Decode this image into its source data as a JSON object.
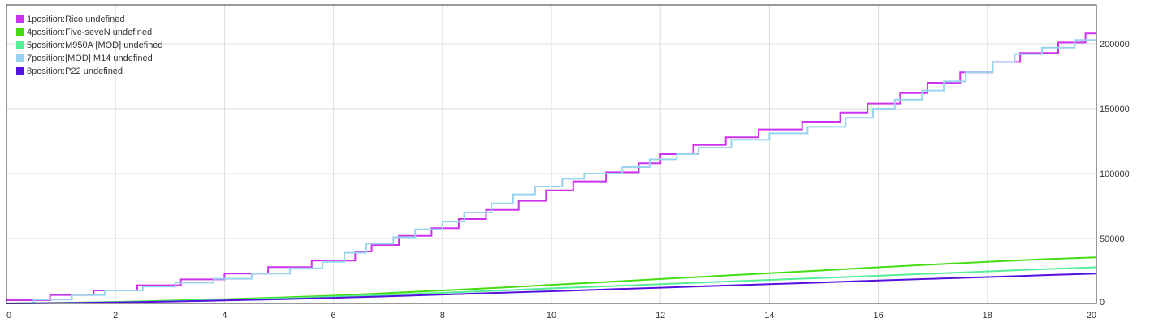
{
  "chart_data": {
    "type": "line",
    "step": true,
    "title": "",
    "xlabel": "",
    "ylabel": "",
    "xlim": [
      0,
      20
    ],
    "ylim": [
      0,
      230000
    ],
    "x_ticks": [
      0,
      2,
      4,
      6,
      8,
      10,
      12,
      14,
      16,
      18,
      20
    ],
    "x_tick_labels": [
      "0",
      "2",
      "4",
      "6",
      "8",
      "10",
      "12",
      "14",
      "16",
      "18",
      "20"
    ],
    "y_ticks": [
      0,
      50000,
      100000,
      150000,
      200000
    ],
    "y_tick_labels": [
      "0",
      "50000",
      "100000",
      "150000",
      "200000"
    ],
    "y_axis_side": "right",
    "grid": true,
    "legend_position": "top-left",
    "series": [
      {
        "name": "1position:Rico undefined",
        "color": "#cc33ee",
        "points": [
          [
            0,
            2500
          ],
          [
            0.8,
            2500
          ],
          [
            0.8,
            6500
          ],
          [
            1.6,
            6500
          ],
          [
            1.6,
            10000
          ],
          [
            2.4,
            10000
          ],
          [
            2.4,
            14000
          ],
          [
            3.2,
            14000
          ],
          [
            3.2,
            18500
          ],
          [
            4.0,
            18500
          ],
          [
            4.0,
            23000
          ],
          [
            4.8,
            23000
          ],
          [
            4.8,
            28000
          ],
          [
            5.6,
            28000
          ],
          [
            5.6,
            33000
          ],
          [
            6.4,
            33000
          ],
          [
            6.4,
            40000
          ],
          [
            6.7,
            40000
          ],
          [
            6.7,
            45000
          ],
          [
            7.2,
            45000
          ],
          [
            7.2,
            52000
          ],
          [
            7.8,
            52000
          ],
          [
            7.8,
            58000
          ],
          [
            8.3,
            58000
          ],
          [
            8.3,
            65000
          ],
          [
            8.8,
            65000
          ],
          [
            8.8,
            72000
          ],
          [
            9.4,
            72000
          ],
          [
            9.4,
            79000
          ],
          [
            9.9,
            79000
          ],
          [
            9.9,
            87000
          ],
          [
            10.4,
            87000
          ],
          [
            10.4,
            94000
          ],
          [
            11.0,
            94000
          ],
          [
            11.0,
            101000
          ],
          [
            11.6,
            101000
          ],
          [
            11.6,
            108000
          ],
          [
            12.0,
            108000
          ],
          [
            12.0,
            115000
          ],
          [
            12.6,
            115000
          ],
          [
            12.6,
            122000
          ],
          [
            13.2,
            122000
          ],
          [
            13.2,
            128000
          ],
          [
            13.8,
            128000
          ],
          [
            13.8,
            134000
          ],
          [
            14.6,
            134000
          ],
          [
            14.6,
            140000
          ],
          [
            15.3,
            140000
          ],
          [
            15.3,
            147000
          ],
          [
            15.8,
            147000
          ],
          [
            15.8,
            154000
          ],
          [
            16.4,
            154000
          ],
          [
            16.4,
            162000
          ],
          [
            16.9,
            162000
          ],
          [
            16.9,
            170000
          ],
          [
            17.5,
            170000
          ],
          [
            17.5,
            178000
          ],
          [
            18.1,
            178000
          ],
          [
            18.1,
            186000
          ],
          [
            18.6,
            186000
          ],
          [
            18.6,
            193000
          ],
          [
            19.3,
            193000
          ],
          [
            19.3,
            201000
          ],
          [
            19.8,
            201000
          ],
          [
            19.8,
            208000
          ],
          [
            20.0,
            208000
          ]
        ]
      },
      {
        "name": "4position:Five-seveN undefined",
        "color": "#44dd11",
        "points": [
          [
            0,
            0
          ],
          [
            1,
            500
          ],
          [
            2,
            1200
          ],
          [
            3,
            2200
          ],
          [
            4,
            3300
          ],
          [
            5,
            4500
          ],
          [
            6,
            6000
          ],
          [
            7,
            8000
          ],
          [
            8,
            10000
          ],
          [
            9,
            12000
          ],
          [
            10,
            14300
          ],
          [
            11,
            16500
          ],
          [
            12,
            18800
          ],
          [
            13,
            21000
          ],
          [
            14,
            23300
          ],
          [
            15,
            25500
          ],
          [
            16,
            27800
          ],
          [
            17,
            30000
          ],
          [
            18,
            32000
          ],
          [
            19,
            34000
          ],
          [
            20,
            35500
          ]
        ]
      },
      {
        "name": "5position:M950A [MOD] undefined",
        "color": "#55ee99",
        "points": [
          [
            0,
            0
          ],
          [
            1,
            400
          ],
          [
            2,
            1000
          ],
          [
            3,
            1800
          ],
          [
            4,
            2800
          ],
          [
            5,
            3900
          ],
          [
            6,
            5100
          ],
          [
            7,
            6600
          ],
          [
            8,
            8200
          ],
          [
            9,
            9900
          ],
          [
            10,
            11600
          ],
          [
            11,
            13200
          ],
          [
            12,
            14900
          ],
          [
            13,
            16500
          ],
          [
            14,
            18100
          ],
          [
            15,
            19700
          ],
          [
            16,
            21300
          ],
          [
            17,
            23000
          ],
          [
            18,
            24600
          ],
          [
            19,
            26300
          ],
          [
            20,
            27800
          ]
        ]
      },
      {
        "name": "7position:[MOD] M14 undefined",
        "color": "#99d3ee",
        "points": [
          [
            0,
            0
          ],
          [
            0.5,
            0
          ],
          [
            0.5,
            3000
          ],
          [
            1.2,
            3000
          ],
          [
            1.2,
            6500
          ],
          [
            1.8,
            6500
          ],
          [
            1.8,
            10000
          ],
          [
            2.5,
            10000
          ],
          [
            2.5,
            13000
          ],
          [
            3.1,
            13000
          ],
          [
            3.1,
            16000
          ],
          [
            3.8,
            16000
          ],
          [
            3.8,
            19000
          ],
          [
            4.5,
            19000
          ],
          [
            4.5,
            23000
          ],
          [
            5.2,
            23000
          ],
          [
            5.2,
            27000
          ],
          [
            5.8,
            27000
          ],
          [
            5.8,
            32000
          ],
          [
            6.2,
            32000
          ],
          [
            6.2,
            39000
          ],
          [
            6.6,
            39000
          ],
          [
            6.6,
            46000
          ],
          [
            7.1,
            46000
          ],
          [
            7.1,
            51000
          ],
          [
            7.5,
            51000
          ],
          [
            7.5,
            57000
          ],
          [
            8.0,
            57000
          ],
          [
            8.0,
            63000
          ],
          [
            8.4,
            63000
          ],
          [
            8.4,
            70000
          ],
          [
            8.9,
            70000
          ],
          [
            8.9,
            77000
          ],
          [
            9.3,
            77000
          ],
          [
            9.3,
            84000
          ],
          [
            9.7,
            84000
          ],
          [
            9.7,
            90000
          ],
          [
            10.2,
            90000
          ],
          [
            10.2,
            96000
          ],
          [
            10.6,
            96000
          ],
          [
            10.6,
            100000
          ],
          [
            11.3,
            100000
          ],
          [
            11.3,
            105000
          ],
          [
            11.8,
            105000
          ],
          [
            11.8,
            111000
          ],
          [
            12.3,
            111000
          ],
          [
            12.3,
            115000
          ],
          [
            12.7,
            115000
          ],
          [
            12.7,
            120000
          ],
          [
            13.3,
            120000
          ],
          [
            13.3,
            126000
          ],
          [
            14.0,
            126000
          ],
          [
            14.0,
            131000
          ],
          [
            14.7,
            131000
          ],
          [
            14.7,
            136000
          ],
          [
            15.4,
            136000
          ],
          [
            15.4,
            143000
          ],
          [
            15.9,
            143000
          ],
          [
            15.9,
            150000
          ],
          [
            16.3,
            150000
          ],
          [
            16.3,
            157000
          ],
          [
            16.8,
            157000
          ],
          [
            16.8,
            164000
          ],
          [
            17.2,
            164000
          ],
          [
            17.2,
            171000
          ],
          [
            17.6,
            171000
          ],
          [
            17.6,
            178000
          ],
          [
            18.1,
            178000
          ],
          [
            18.1,
            186000
          ],
          [
            18.5,
            186000
          ],
          [
            18.5,
            192000
          ],
          [
            19.0,
            192000
          ],
          [
            19.0,
            197000
          ],
          [
            19.6,
            197000
          ],
          [
            19.6,
            203000
          ],
          [
            20.0,
            203000
          ]
        ]
      },
      {
        "name": "8position:P22 undefined",
        "color": "#5511dd",
        "points": [
          [
            0,
            0
          ],
          [
            1,
            300
          ],
          [
            2,
            800
          ],
          [
            3,
            1500
          ],
          [
            4,
            2300
          ],
          [
            5,
            3200
          ],
          [
            6,
            4300
          ],
          [
            7,
            5500
          ],
          [
            8,
            6800
          ],
          [
            9,
            8100
          ],
          [
            10,
            9400
          ],
          [
            11,
            10800
          ],
          [
            12,
            12100
          ],
          [
            13,
            13500
          ],
          [
            14,
            14900
          ],
          [
            15,
            16200
          ],
          [
            16,
            17600
          ],
          [
            17,
            19000
          ],
          [
            18,
            20300
          ],
          [
            19,
            21700
          ],
          [
            20,
            23000
          ]
        ]
      }
    ]
  }
}
